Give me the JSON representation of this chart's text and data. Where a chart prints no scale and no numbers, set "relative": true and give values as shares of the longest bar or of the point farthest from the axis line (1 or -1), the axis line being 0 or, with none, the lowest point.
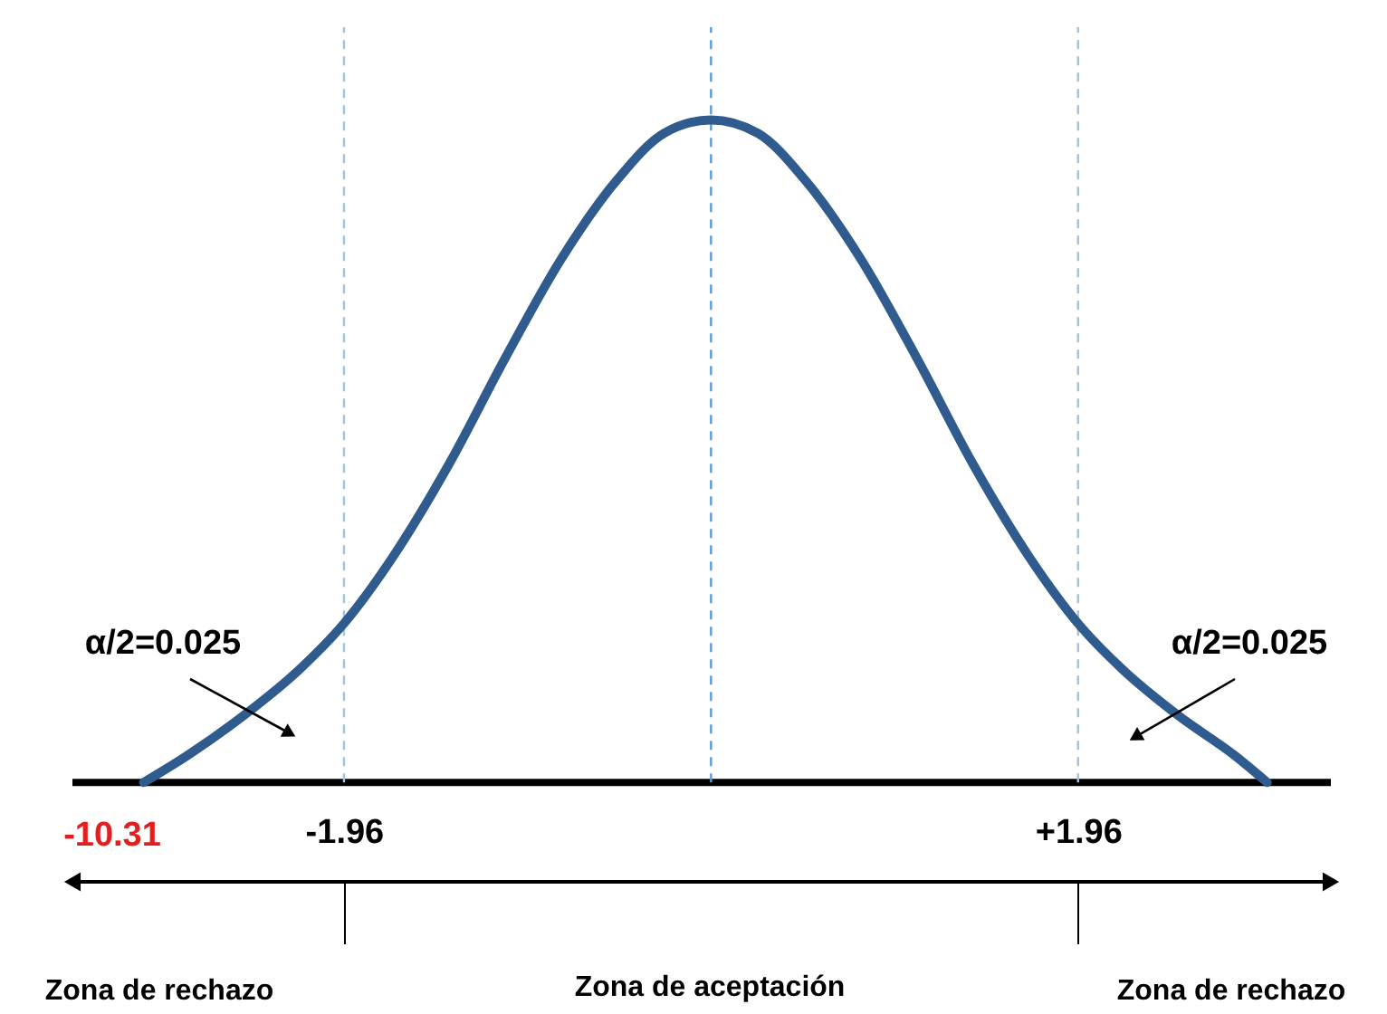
{
  "chart_data": {
    "type": "line",
    "relative": true,
    "x": [
      -3.03,
      -2.8,
      -2.5,
      -2.2,
      -1.96,
      -1.7,
      -1.4,
      -1.1,
      -0.8,
      -0.5,
      -0.25,
      0,
      0.25,
      0.5,
      0.8,
      1.1,
      1.4,
      1.7,
      1.96,
      2.2,
      2.5,
      2.8,
      2.97
    ],
    "series": [
      {
        "color": "#2f5b8e",
        "values": [
          0,
          0.04,
          0.1,
          0.17,
          0.24,
          0.34,
          0.48,
          0.64,
          0.79,
          0.91,
          0.98,
          1,
          0.98,
          0.91,
          0.79,
          0.64,
          0.48,
          0.34,
          0.24,
          0.17,
          0.1,
          0.04,
          0
        ]
      }
    ],
    "xlim": [
      -3.41,
      3.31
    ],
    "xticks": [
      -1.96,
      {
        "value": 1.96,
        "label": "+1.96"
      }
    ],
    "ref_lines": [
      {
        "axis": "x",
        "value": -1.96,
        "color": "#9dc3e6",
        "line_style": "dashed"
      },
      {
        "axis": "x",
        "value": 0,
        "color": "#5b9bd5",
        "line_style": "dashed"
      },
      {
        "axis": "x",
        "value": 1.96,
        "color": "#9dc3e6",
        "line_style": "dashed"
      }
    ],
    "annotations": [
      "α/2=0.025",
      "α/2=0.025",
      "-10.31",
      "Zona de rechazo",
      "Zona de aceptación",
      "Zona de rechazo"
    ]
  }
}
